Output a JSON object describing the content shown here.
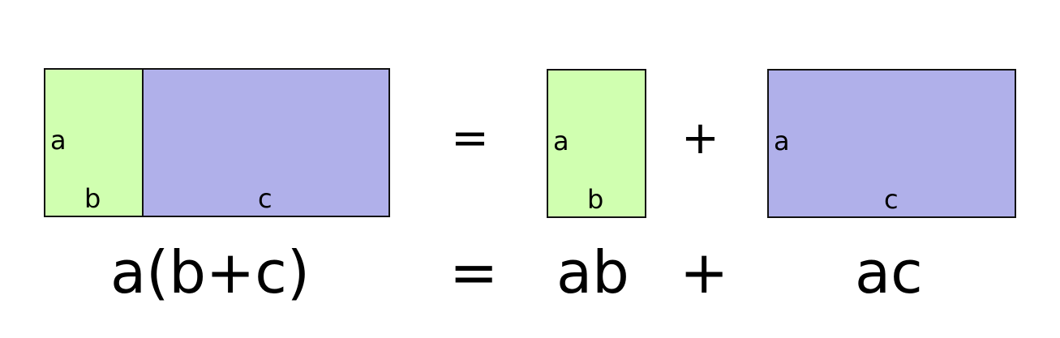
{
  "colors": {
    "green": "#d0ffb0",
    "blue": "#b0b0ea",
    "border": "#111111"
  },
  "left": {
    "b_rect": {
      "side_label": "a",
      "bottom_label": "b"
    },
    "c_rect": {
      "bottom_label": "c"
    }
  },
  "equals_sign": "=",
  "middle": {
    "side_label": "a",
    "bottom_label": "b"
  },
  "plus_sign": "+",
  "right": {
    "side_label": "a",
    "bottom_label": "c"
  },
  "formula": {
    "left": "a(b+c)",
    "equals": "=",
    "middle": "ab",
    "plus": "+",
    "right": "ac"
  }
}
